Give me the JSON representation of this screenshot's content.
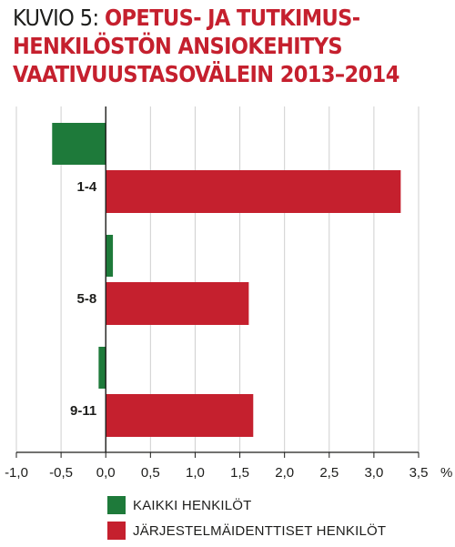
{
  "title": {
    "prefix": "KUVIO 5: ",
    "line1": "OPETUS- JA TUTKIMUS-",
    "line2": "HENKILÖSTÖN ANSIOKEHITYS",
    "line3": "VAATIVUUSTASOVÄLEIN 2013–2014"
  },
  "chart_data": {
    "type": "bar",
    "orientation": "horizontal",
    "categories": [
      "1-4",
      "5-8",
      "9-11"
    ],
    "series": [
      {
        "name": "KAIKKI HENKILÖT",
        "color": "#1e7a3a",
        "values": [
          -0.6,
          0.08,
          -0.08
        ]
      },
      {
        "name": "JÄRJESTELMÄIDENTTISET HENKILÖT",
        "color": "#c5202e",
        "values": [
          3.3,
          1.6,
          1.65
        ]
      }
    ],
    "xlim": [
      -1.0,
      3.5
    ],
    "xticks": [
      -1.0,
      -0.5,
      0.0,
      0.5,
      1.0,
      1.5,
      2.0,
      2.5,
      3.0,
      3.5
    ],
    "xtick_labels": [
      "-1,0",
      "-0,5",
      "0,0",
      "0,5",
      "1,0",
      "1,5",
      "2,0",
      "2,5",
      "3,0",
      "3,5"
    ],
    "xunit": "%",
    "grid": true,
    "legend_position": "bottom"
  }
}
